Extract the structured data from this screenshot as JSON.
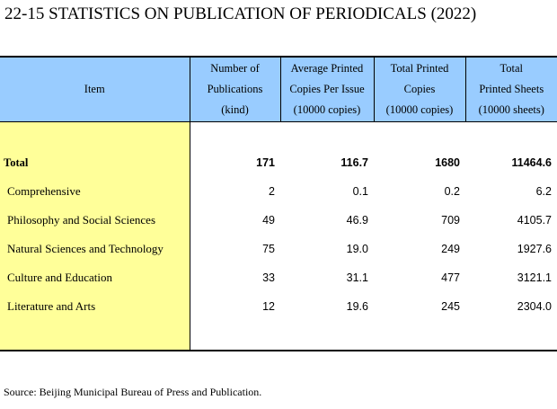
{
  "title": "22-15  STATISTICS ON PUBLICATION OF PERIODICALS (2022)",
  "header": {
    "item": "Item",
    "publications": [
      "Number of",
      "Publications",
      "(kind)"
    ],
    "avg_copies": [
      "Average Printed",
      "Copies Per Issue",
      "(10000 copies)"
    ],
    "total_copies": [
      "Total Printed",
      "Copies",
      "(10000 copies)"
    ],
    "total_sheets": [
      "Total",
      "Printed Sheets",
      "(10000 sheets)"
    ]
  },
  "rows": [
    {
      "item": "Total",
      "publications": "171",
      "avg_copies": "116.7",
      "total_copies": "1680",
      "total_sheets": "11464.6"
    },
    {
      "item": "Comprehensive",
      "publications": "2",
      "avg_copies": "0.1",
      "total_copies": "0.2",
      "total_sheets": "6.2"
    },
    {
      "item": "Philosophy and Social Sciences",
      "publications": "49",
      "avg_copies": "46.9",
      "total_copies": "709",
      "total_sheets": "4105.7"
    },
    {
      "item": "Natural Sciences and Technology",
      "publications": "75",
      "avg_copies": "19.0",
      "total_copies": "249",
      "total_sheets": "1927.6"
    },
    {
      "item": "Culture and Education",
      "publications": "33",
      "avg_copies": "31.1",
      "total_copies": "477",
      "total_sheets": "3121.1"
    },
    {
      "item": "Literature and Arts",
      "publications": "12",
      "avg_copies": "19.6",
      "total_copies": "245",
      "total_sheets": "2304.0"
    }
  ],
  "source": "Source: Beijing Municipal Bureau of Press and Publication.",
  "colors": {
    "header_bg": "#99ccff",
    "item_column_bg": "#ffff99"
  }
}
